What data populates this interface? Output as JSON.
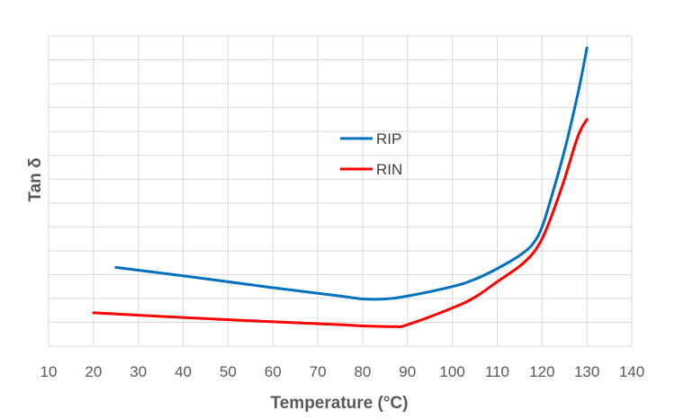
{
  "chart_data": {
    "type": "line",
    "title": "",
    "xlabel": "Temperature (°C)",
    "ylabel": "Tan δ",
    "xlim": [
      10,
      140
    ],
    "ylim": [
      0,
      13
    ],
    "xticks": [
      "10",
      "20",
      "30",
      "40",
      "50",
      "60",
      "70",
      "80",
      "90",
      "100",
      "110",
      "120",
      "130",
      "140"
    ],
    "y_tick_labels_shown": false,
    "grid": true,
    "legend_position": "center",
    "series": [
      {
        "name": "RIP",
        "color": "#0070c0",
        "points": [
          [
            25,
            3.3
          ],
          [
            40,
            2.95
          ],
          [
            60,
            2.45
          ],
          [
            75,
            2.1
          ],
          [
            80,
            1.98
          ],
          [
            85,
            1.98
          ],
          [
            90,
            2.1
          ],
          [
            100,
            2.5
          ],
          [
            105,
            2.8
          ],
          [
            110,
            3.25
          ],
          [
            115,
            3.8
          ],
          [
            118,
            4.3
          ],
          [
            120,
            5.0
          ],
          [
            122,
            6.2
          ],
          [
            125,
            8.2
          ],
          [
            128,
            10.6
          ],
          [
            130,
            12.5
          ]
        ]
      },
      {
        "name": "RIN",
        "color": "#ff0000",
        "points": [
          [
            20,
            1.4
          ],
          [
            40,
            1.2
          ],
          [
            60,
            1.02
          ],
          [
            75,
            0.9
          ],
          [
            80,
            0.85
          ],
          [
            87,
            0.82
          ],
          [
            90,
            0.9
          ],
          [
            100,
            1.6
          ],
          [
            105,
            2.05
          ],
          [
            110,
            2.7
          ],
          [
            115,
            3.35
          ],
          [
            118,
            3.9
          ],
          [
            120,
            4.5
          ],
          [
            122,
            5.4
          ],
          [
            125,
            7.0
          ],
          [
            128,
            8.8
          ],
          [
            130,
            9.5
          ]
        ]
      }
    ]
  }
}
